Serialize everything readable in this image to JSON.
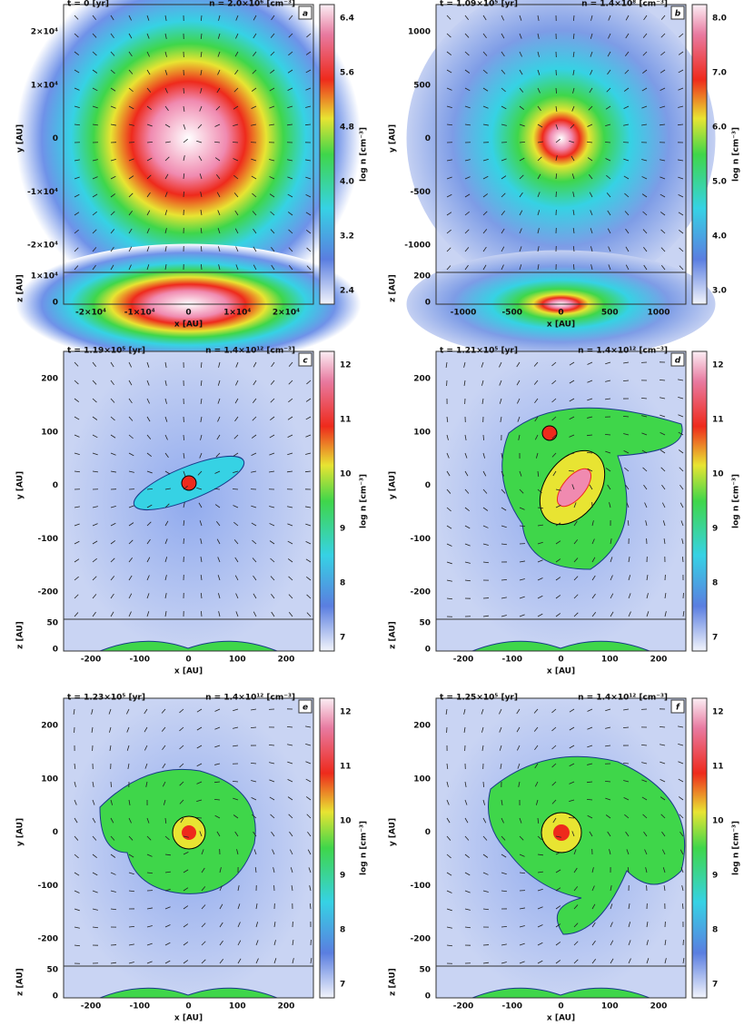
{
  "panels": [
    {
      "label": "a",
      "title": "t = 0 [yr]",
      "subtitle": "n = 2.0×10⁶ [cm⁻³]",
      "xlabel": "x [AU]",
      "ylabel": "y [AU]",
      "zlabel": "z [AU]",
      "cblabel": "log n [cm⁻³]",
      "yticks": [
        "2×10⁴",
        "1×10⁴",
        "0",
        "-1×10⁴",
        "-2×10⁴"
      ],
      "xticks": [
        "-2×10⁴",
        "-1×10⁴",
        "0",
        "1×10⁴",
        "2×10⁴"
      ],
      "zticks": [
        "1×10⁴",
        "0"
      ],
      "cbticks": [
        "6.4",
        "5.6",
        "4.8",
        "4.0",
        "3.2",
        "2.4"
      ]
    },
    {
      "label": "b",
      "title": "t = 1.09×10⁵ [yr]",
      "subtitle": "n = 1.4×10⁸ [cm⁻³]",
      "xlabel": "x [AU]",
      "ylabel": "y [AU]",
      "zlabel": "z [AU]",
      "cblabel": "log n [cm⁻³]",
      "yticks": [
        "1000",
        "500",
        "0",
        "-500",
        "-1000"
      ],
      "xticks": [
        "-1000",
        "-500",
        "0",
        "500",
        "1000"
      ],
      "zticks": [
        "200",
        "0"
      ],
      "cbticks": [
        "8.0",
        "7.0",
        "6.0",
        "5.0",
        "4.0",
        "3.0"
      ]
    },
    {
      "label": "c",
      "title": "t = 1.19×10⁵ [yr]",
      "subtitle": "n = 1.4×10¹² [cm⁻³]",
      "xlabel": "x [AU]",
      "ylabel": "y [AU]",
      "zlabel": "z [AU]",
      "cblabel": "log n [cm⁻³]",
      "yticks": [
        "200",
        "100",
        "0",
        "-100",
        "-200"
      ],
      "xticks": [
        "-200",
        "-100",
        "0",
        "100",
        "200"
      ],
      "zticks": [
        "50",
        "0"
      ],
      "cbticks": [
        "12",
        "11",
        "10",
        "9",
        "8",
        "7"
      ]
    },
    {
      "label": "d",
      "title": "t = 1.21×10⁵ [yr]",
      "subtitle": "n = 1.4×10¹² [cm⁻³]",
      "xlabel": "x [AU]",
      "ylabel": "y [AU]",
      "zlabel": "z [AU]",
      "cblabel": "log n [cm⁻³]",
      "yticks": [
        "200",
        "100",
        "0",
        "-100",
        "-200"
      ],
      "xticks": [
        "-200",
        "-100",
        "0",
        "100",
        "200"
      ],
      "zticks": [
        "50",
        "0"
      ],
      "cbticks": [
        "12",
        "11",
        "10",
        "9",
        "8",
        "7"
      ]
    },
    {
      "label": "e",
      "title": "t = 1.23×10⁵ [yr]",
      "subtitle": "n = 1.4×10¹² [cm⁻³]",
      "xlabel": "x [AU]",
      "ylabel": "y [AU]",
      "zlabel": "z [AU]",
      "cblabel": "log n [cm⁻³]",
      "yticks": [
        "200",
        "100",
        "0",
        "-100",
        "-200"
      ],
      "xticks": [
        "-200",
        "-100",
        "0",
        "100",
        "200"
      ],
      "zticks": [
        "50",
        "0"
      ],
      "cbticks": [
        "12",
        "11",
        "10",
        "9",
        "8",
        "7"
      ]
    },
    {
      "label": "f",
      "title": "t = 1.25×10⁵ [yr]",
      "subtitle": "n = 1.4×10¹² [cm⁻³]",
      "xlabel": "x [AU]",
      "ylabel": "y [AU]",
      "zlabel": "z [AU]",
      "cblabel": "log n [cm⁻³]",
      "yticks": [
        "200",
        "100",
        "0",
        "-100",
        "-200"
      ],
      "xticks": [
        "-200",
        "-100",
        "0",
        "100",
        "200"
      ],
      "zticks": [
        "50",
        "0"
      ],
      "cbticks": [
        "12",
        "11",
        "10",
        "9",
        "8",
        "7"
      ]
    }
  ]
}
